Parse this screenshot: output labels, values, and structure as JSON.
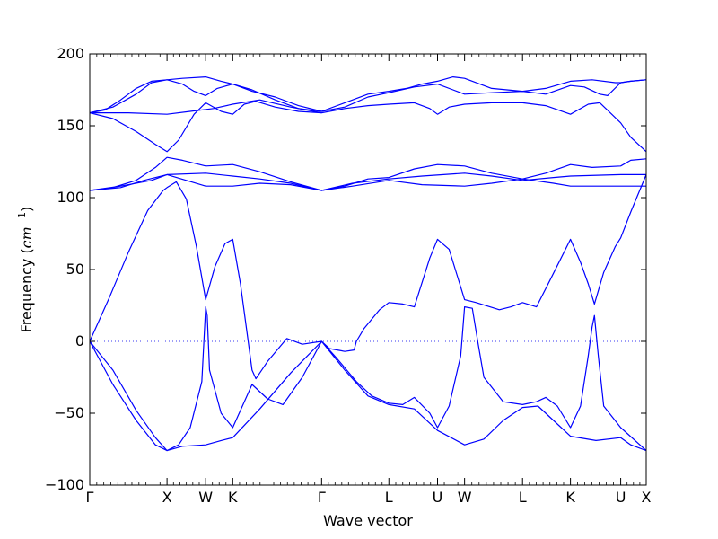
{
  "chart_data": {
    "type": "line",
    "title": "",
    "xlabel": "Wave vector",
    "ylabel_text": "Frequency (",
    "ylabel_unit_base": "cm",
    "ylabel_unit_sup": "−1",
    "ylabel_close": ")",
    "ylim": [
      -100,
      200
    ],
    "yticks": [
      -100,
      -50,
      0,
      50,
      100,
      150,
      200
    ],
    "ytick_labels": [
      "−100",
      "−50",
      "0",
      "50",
      "100",
      "150",
      "200"
    ],
    "grid": false,
    "line_color": "#0000ff",
    "zero_line_color": "#3a3af0",
    "xlim": [
      0,
      7.2
    ],
    "high_symmetry_points": [
      {
        "label": "Γ",
        "x": 0.0
      },
      {
        "label": "X",
        "x": 1.0
      },
      {
        "label": "W",
        "x": 1.5
      },
      {
        "label": "K",
        "x": 1.85
      },
      {
        "label": "Γ",
        "x": 3.0
      },
      {
        "label": "L",
        "x": 3.87
      },
      {
        "label": "U",
        "x": 4.5
      },
      {
        "label": "W",
        "x": 4.85
      },
      {
        "label": "L",
        "x": 5.6
      },
      {
        "label": "K",
        "x": 6.22
      },
      {
        "label": "U",
        "x": 6.87
      },
      {
        "label": "X",
        "x": 7.2
      }
    ],
    "series": [
      {
        "values": [
          [
            0,
            159
          ],
          [
            0.2,
            161
          ],
          [
            0.4,
            168
          ],
          [
            0.6,
            176
          ],
          [
            0.8,
            181
          ],
          [
            1.0,
            182
          ],
          [
            1.2,
            183
          ],
          [
            1.5,
            184
          ],
          [
            1.7,
            181
          ],
          [
            1.85,
            179
          ],
          [
            2.1,
            175
          ],
          [
            2.4,
            168
          ],
          [
            2.7,
            162
          ],
          [
            3.0,
            160
          ],
          [
            3.3,
            166
          ],
          [
            3.6,
            172
          ],
          [
            3.87,
            174
          ],
          [
            4.1,
            176
          ],
          [
            4.3,
            179
          ],
          [
            4.5,
            181
          ],
          [
            4.7,
            184
          ],
          [
            4.85,
            183
          ],
          [
            5.2,
            176
          ],
          [
            5.6,
            174
          ],
          [
            5.9,
            176
          ],
          [
            6.22,
            181
          ],
          [
            6.5,
            182
          ],
          [
            6.8,
            180
          ],
          [
            6.87,
            180
          ],
          [
            7.0,
            181
          ],
          [
            7.2,
            182
          ]
        ]
      },
      {
        "values": [
          [
            0,
            159
          ],
          [
            0.3,
            163
          ],
          [
            0.6,
            172
          ],
          [
            0.8,
            180
          ],
          [
            1.0,
            182
          ],
          [
            1.2,
            179
          ],
          [
            1.35,
            174
          ],
          [
            1.5,
            171
          ],
          [
            1.65,
            176
          ],
          [
            1.85,
            179
          ],
          [
            2.1,
            174
          ],
          [
            2.4,
            170
          ],
          [
            2.7,
            164
          ],
          [
            3.0,
            160
          ],
          [
            3.3,
            163
          ],
          [
            3.6,
            170
          ],
          [
            3.87,
            173
          ],
          [
            4.2,
            177
          ],
          [
            4.5,
            179
          ],
          [
            4.7,
            175
          ],
          [
            4.85,
            172
          ],
          [
            5.2,
            173
          ],
          [
            5.6,
            174
          ],
          [
            5.9,
            172
          ],
          [
            6.22,
            178
          ],
          [
            6.4,
            177
          ],
          [
            6.6,
            172
          ],
          [
            6.7,
            171
          ],
          [
            6.87,
            180
          ],
          [
            7.0,
            181
          ],
          [
            7.2,
            182
          ]
        ]
      },
      {
        "values": [
          [
            0,
            159
          ],
          [
            0.3,
            155
          ],
          [
            0.6,
            146
          ],
          [
            0.85,
            137
          ],
          [
            1.0,
            132
          ],
          [
            1.15,
            140
          ],
          [
            1.35,
            158
          ],
          [
            1.5,
            166
          ],
          [
            1.7,
            160
          ],
          [
            1.85,
            158
          ],
          [
            2.0,
            165
          ],
          [
            2.15,
            167
          ],
          [
            2.4,
            163
          ],
          [
            2.7,
            160
          ],
          [
            3.0,
            159
          ],
          [
            3.3,
            162
          ],
          [
            3.6,
            164
          ],
          [
            3.87,
            165
          ],
          [
            4.2,
            166
          ],
          [
            4.4,
            162
          ],
          [
            4.5,
            158
          ],
          [
            4.65,
            163
          ],
          [
            4.85,
            165
          ],
          [
            5.2,
            166
          ],
          [
            5.6,
            166
          ],
          [
            5.9,
            164
          ],
          [
            6.22,
            158
          ],
          [
            6.45,
            165
          ],
          [
            6.6,
            166
          ],
          [
            6.87,
            152
          ],
          [
            7.0,
            142
          ],
          [
            7.2,
            132
          ]
        ]
      },
      {
        "values": [
          [
            0,
            159
          ],
          [
            0.5,
            159
          ],
          [
            1.0,
            158
          ],
          [
            1.3,
            160
          ],
          [
            1.6,
            162
          ],
          [
            1.85,
            165
          ],
          [
            2.2,
            168
          ],
          [
            2.6,
            163
          ],
          [
            3.0,
            159
          ]
        ]
      },
      {
        "values": [
          [
            0,
            105
          ],
          [
            0.3,
            107
          ],
          [
            0.6,
            112
          ],
          [
            0.85,
            121
          ],
          [
            1.0,
            128
          ],
          [
            1.2,
            126
          ],
          [
            1.5,
            122
          ],
          [
            1.85,
            123
          ],
          [
            2.2,
            118
          ],
          [
            2.6,
            111
          ],
          [
            3.0,
            105
          ],
          [
            3.3,
            108
          ],
          [
            3.6,
            113
          ],
          [
            3.87,
            114
          ],
          [
            4.2,
            120
          ],
          [
            4.5,
            123
          ],
          [
            4.85,
            122
          ],
          [
            5.2,
            117
          ],
          [
            5.6,
            113
          ],
          [
            5.9,
            117
          ],
          [
            6.22,
            123
          ],
          [
            6.5,
            121
          ],
          [
            6.87,
            122
          ],
          [
            7.0,
            126
          ],
          [
            7.2,
            127
          ]
        ]
      },
      {
        "values": [
          [
            0,
            105
          ],
          [
            0.4,
            107
          ],
          [
            0.7,
            112
          ],
          [
            1.0,
            116
          ],
          [
            1.5,
            117
          ],
          [
            1.85,
            115
          ],
          [
            2.2,
            113
          ],
          [
            2.6,
            110
          ],
          [
            3.0,
            105
          ],
          [
            3.4,
            110
          ],
          [
            3.87,
            113
          ],
          [
            4.3,
            115
          ],
          [
            4.85,
            117
          ],
          [
            5.2,
            115
          ],
          [
            5.6,
            112
          ],
          [
            6.0,
            114
          ],
          [
            6.22,
            115
          ],
          [
            6.87,
            116
          ],
          [
            7.2,
            116
          ]
        ]
      },
      {
        "values": [
          [
            0,
            105
          ],
          [
            0.4,
            108
          ],
          [
            0.8,
            112
          ],
          [
            1.0,
            116
          ],
          [
            1.5,
            108
          ],
          [
            1.85,
            108
          ],
          [
            2.2,
            110
          ],
          [
            2.6,
            109
          ],
          [
            3.0,
            105
          ],
          [
            3.4,
            108
          ],
          [
            3.87,
            112
          ],
          [
            4.3,
            109
          ],
          [
            4.85,
            108
          ],
          [
            5.2,
            110
          ],
          [
            5.6,
            113
          ],
          [
            6.0,
            110
          ],
          [
            6.22,
            108
          ],
          [
            6.87,
            108
          ],
          [
            7.2,
            108
          ]
        ]
      },
      {
        "values": [
          [
            0,
            0
          ],
          [
            0.25,
            30
          ],
          [
            0.5,
            62
          ],
          [
            0.75,
            91
          ],
          [
            0.95,
            105
          ],
          [
            1.0,
            107
          ],
          [
            1.12,
            111
          ],
          [
            1.25,
            99
          ],
          [
            1.38,
            66
          ],
          [
            1.5,
            29
          ],
          [
            1.62,
            52
          ],
          [
            1.75,
            68
          ],
          [
            1.85,
            71
          ],
          [
            1.95,
            40
          ],
          [
            2.05,
            0
          ],
          [
            2.1,
            -20
          ],
          [
            2.15,
            -26
          ],
          [
            2.3,
            -14
          ],
          [
            2.55,
            2
          ],
          [
            2.75,
            -2
          ],
          [
            3.0,
            0
          ],
          [
            3.1,
            -5
          ],
          [
            3.3,
            -7
          ],
          [
            3.42,
            -6
          ],
          [
            3.45,
            0
          ],
          [
            3.55,
            9
          ],
          [
            3.75,
            22
          ],
          [
            3.87,
            27
          ],
          [
            4.05,
            26
          ],
          [
            4.2,
            24
          ],
          [
            4.4,
            58
          ],
          [
            4.5,
            71
          ],
          [
            4.65,
            64
          ],
          [
            4.85,
            29
          ],
          [
            5.0,
            27
          ],
          [
            5.3,
            22
          ],
          [
            5.45,
            24
          ],
          [
            5.6,
            27
          ],
          [
            5.78,
            24
          ],
          [
            5.95,
            42
          ],
          [
            6.22,
            71
          ],
          [
            6.35,
            55
          ],
          [
            6.45,
            40
          ],
          [
            6.53,
            26
          ],
          [
            6.65,
            48
          ],
          [
            6.8,
            66
          ],
          [
            6.87,
            72
          ],
          [
            7.0,
            90
          ],
          [
            7.2,
            116
          ]
        ]
      },
      {
        "values": [
          [
            0,
            0
          ],
          [
            0.3,
            -20
          ],
          [
            0.6,
            -48
          ],
          [
            0.85,
            -67
          ],
          [
            1.0,
            -76
          ],
          [
            1.2,
            -73
          ],
          [
            1.5,
            -72
          ],
          [
            1.7,
            -69
          ],
          [
            1.85,
            -67
          ],
          [
            2.2,
            -47
          ],
          [
            2.6,
            -22
          ],
          [
            3.0,
            0
          ],
          [
            3.3,
            -20
          ],
          [
            3.6,
            -38
          ],
          [
            3.87,
            -44
          ],
          [
            4.2,
            -47
          ],
          [
            4.5,
            -62
          ],
          [
            4.85,
            -72
          ],
          [
            5.1,
            -68
          ],
          [
            5.35,
            -55
          ],
          [
            5.6,
            -46
          ],
          [
            5.8,
            -45
          ],
          [
            6.0,
            -55
          ],
          [
            6.22,
            -66
          ],
          [
            6.55,
            -69
          ],
          [
            6.87,
            -67
          ],
          [
            7.0,
            -72
          ],
          [
            7.2,
            -76
          ]
        ]
      },
      {
        "values": [
          [
            0,
            0
          ],
          [
            0.3,
            -30
          ],
          [
            0.6,
            -55
          ],
          [
            0.85,
            -72
          ],
          [
            1.0,
            -76
          ],
          [
            1.15,
            -72
          ],
          [
            1.3,
            -60
          ],
          [
            1.45,
            -28
          ],
          [
            1.5,
            24
          ],
          [
            1.52,
            18
          ],
          [
            1.55,
            -20
          ],
          [
            1.7,
            -50
          ],
          [
            1.85,
            -60
          ],
          [
            2.0,
            -42
          ],
          [
            2.1,
            -30
          ],
          [
            2.3,
            -40
          ],
          [
            2.5,
            -44
          ],
          [
            2.75,
            -25
          ],
          [
            3.0,
            0
          ],
          [
            3.2,
            -12
          ],
          [
            3.45,
            -28
          ],
          [
            3.65,
            -38
          ],
          [
            3.87,
            -43
          ],
          [
            4.05,
            -44
          ],
          [
            4.2,
            -39
          ],
          [
            4.4,
            -50
          ],
          [
            4.5,
            -60
          ],
          [
            4.65,
            -45
          ],
          [
            4.8,
            -10
          ],
          [
            4.85,
            24
          ],
          [
            4.95,
            23
          ],
          [
            5.02,
            0
          ],
          [
            5.1,
            -25
          ],
          [
            5.35,
            -42
          ],
          [
            5.6,
            -44
          ],
          [
            5.78,
            -42
          ],
          [
            5.9,
            -39
          ],
          [
            6.05,
            -45
          ],
          [
            6.22,
            -60
          ],
          [
            6.35,
            -45
          ],
          [
            6.45,
            -10
          ],
          [
            6.5,
            10
          ],
          [
            6.53,
            18
          ],
          [
            6.58,
            -10
          ],
          [
            6.65,
            -45
          ],
          [
            6.87,
            -60
          ],
          [
            7.2,
            -76
          ]
        ]
      }
    ]
  }
}
